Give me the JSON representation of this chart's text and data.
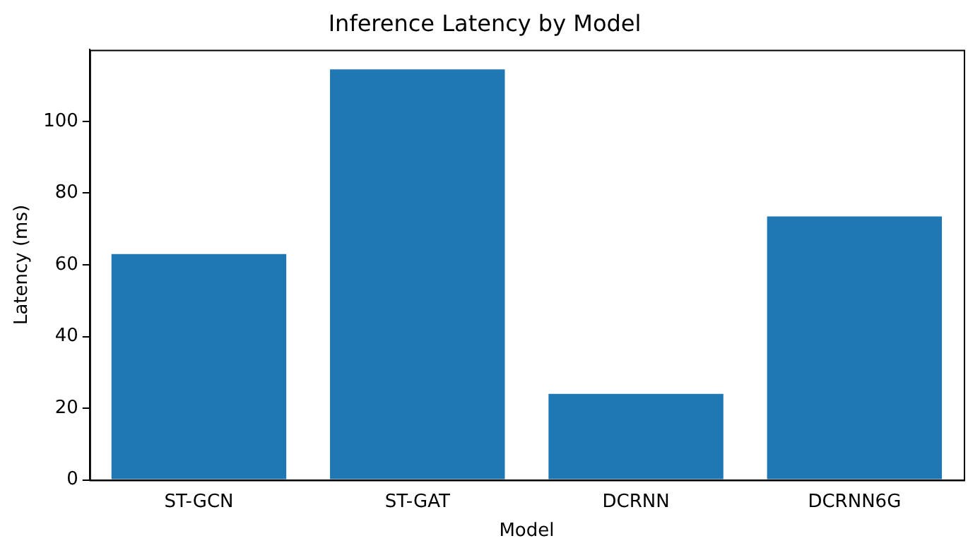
{
  "chart_data": {
    "type": "bar",
    "title": "Inference Latency by Model",
    "xlabel": "Model",
    "ylabel": "Latency (ms)",
    "categories": [
      "ST-GCN",
      "ST-GAT",
      "DCRNN",
      "DCRNN6G"
    ],
    "values": [
      63,
      114.5,
      24,
      73.5
    ],
    "color": "#1f77b4",
    "ylim": [
      0,
      120
    ],
    "yticks": [
      0,
      20,
      40,
      60,
      80,
      100
    ],
    "grid": false,
    "legend": false
  }
}
